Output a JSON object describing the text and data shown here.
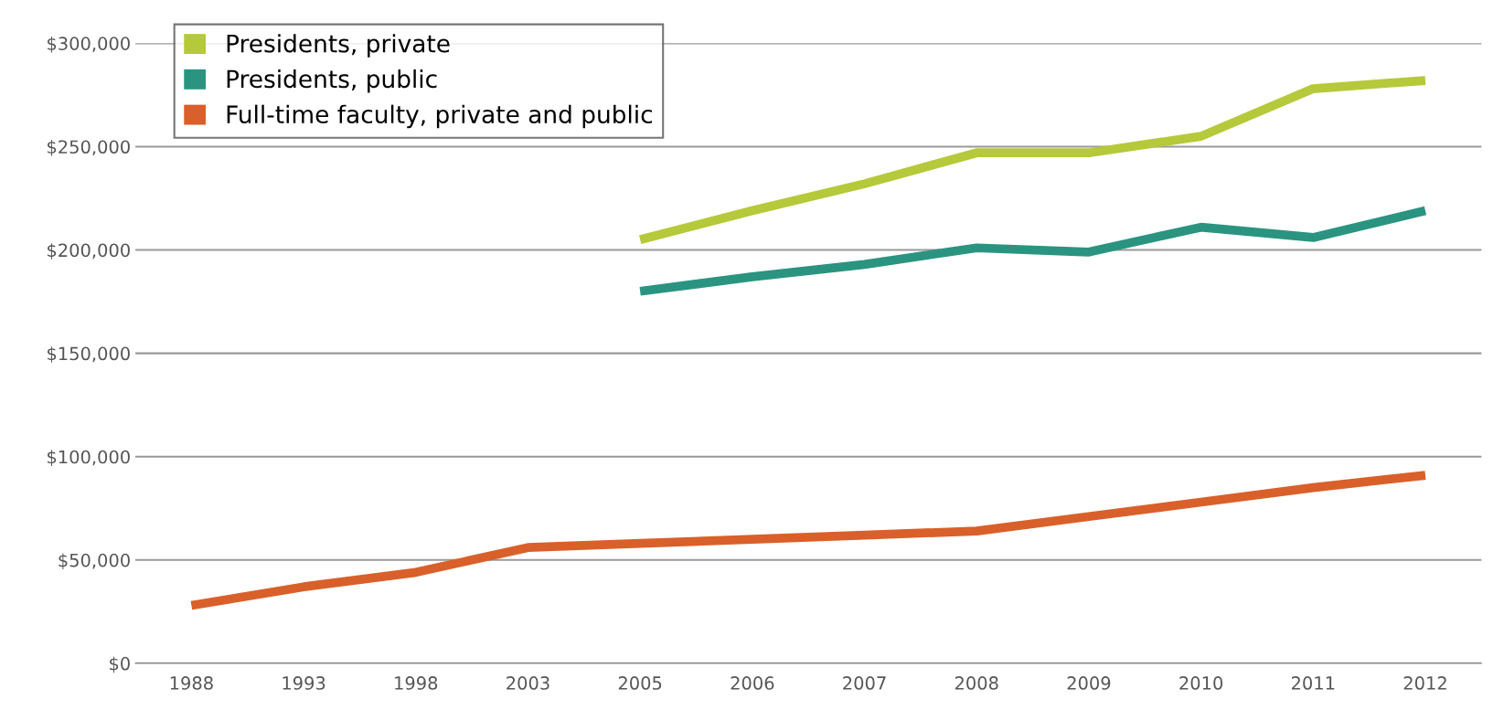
{
  "chart_data": {
    "type": "line",
    "categories": [
      "1988",
      "1993",
      "1998",
      "2003",
      "2005",
      "2006",
      "2007",
      "2008",
      "2009",
      "2010",
      "2011",
      "2012"
    ],
    "series": [
      {
        "name": "Presidents, private",
        "color": "#b5c93a",
        "values": [
          null,
          null,
          null,
          null,
          205000,
          219000,
          232000,
          247000,
          247000,
          255000,
          278000,
          282000
        ]
      },
      {
        "name": "Presidents, public",
        "color": "#2a9480",
        "values": [
          null,
          null,
          null,
          null,
          180000,
          187000,
          193000,
          201000,
          199000,
          211000,
          206000,
          219000
        ]
      },
      {
        "name": "Full-time faculty, private and public",
        "color": "#d9602a",
        "values": [
          28000,
          37000,
          44000,
          56000,
          58000,
          60000,
          62000,
          64000,
          71000,
          78000,
          85000,
          91000
        ]
      }
    ],
    "ylim": [
      0,
      300000
    ],
    "yticks": [
      {
        "value": 0,
        "label": "$0"
      },
      {
        "value": 50000,
        "label": "$50,000"
      },
      {
        "value": 100000,
        "label": "$100,000"
      },
      {
        "value": 150000,
        "label": "$150,000"
      },
      {
        "value": 200000,
        "label": "$200,000"
      },
      {
        "value": 250000,
        "label": "$250,000"
      },
      {
        "value": 300000,
        "label": "$300,000"
      }
    ],
    "grid": "y",
    "legend": "top left",
    "marker": "none",
    "line_style": "solid"
  }
}
